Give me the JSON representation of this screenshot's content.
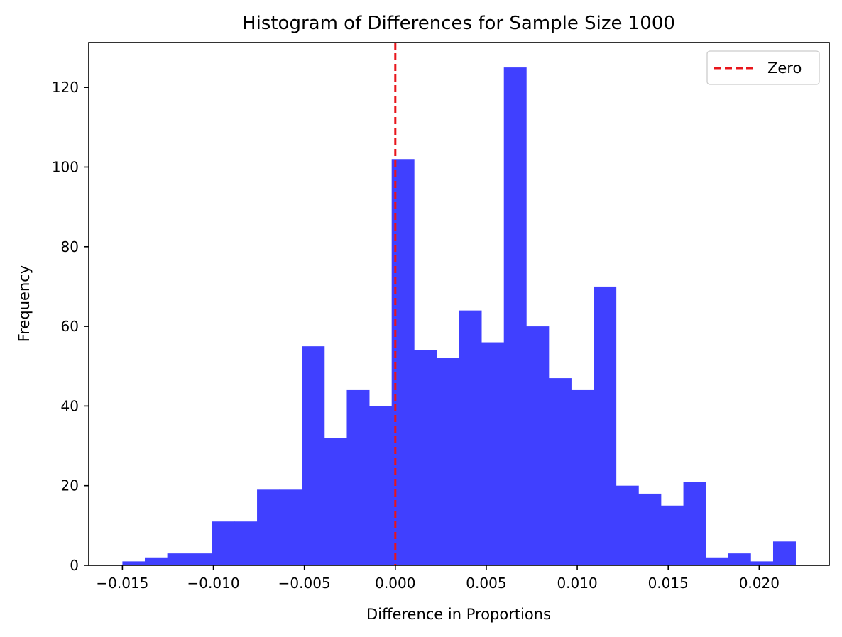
{
  "chart_data": {
    "type": "bar",
    "title": "Histogram of Differences for Sample Size 1000",
    "xlabel": "Difference in Proportions",
    "ylabel": "Frequency",
    "xlim": [
      -0.01685,
      0.02385
    ],
    "ylim": [
      0,
      131.25
    ],
    "x_ticks": [
      {
        "value": -0.015,
        "label": "−0.015"
      },
      {
        "value": -0.01,
        "label": "−0.010"
      },
      {
        "value": -0.005,
        "label": "−0.005"
      },
      {
        "value": 0.0,
        "label": "0.000"
      },
      {
        "value": 0.005,
        "label": "0.005"
      },
      {
        "value": 0.01,
        "label": "0.010"
      },
      {
        "value": 0.015,
        "label": "0.015"
      },
      {
        "value": 0.02,
        "label": "0.020"
      }
    ],
    "y_ticks": [
      {
        "value": 0,
        "label": "0"
      },
      {
        "value": 20,
        "label": "20"
      },
      {
        "value": 40,
        "label": "40"
      },
      {
        "value": 60,
        "label": "60"
      },
      {
        "value": 80,
        "label": "80"
      },
      {
        "value": 100,
        "label": "100"
      },
      {
        "value": 120,
        "label": "120"
      }
    ],
    "bin_start": -0.015,
    "bin_end": 0.022,
    "counts": [
      1,
      2,
      3,
      3,
      11,
      11,
      19,
      19,
      55,
      32,
      44,
      40,
      102,
      54,
      52,
      64,
      56,
      125,
      60,
      47,
      44,
      70,
      20,
      18,
      15,
      21,
      2,
      3,
      1,
      6
    ],
    "bar_color": "#4040ff",
    "reference_line": {
      "x": 0.0,
      "color": "#e8151b",
      "style": "dashed",
      "name": "Zero"
    },
    "legend": {
      "position": "top-right",
      "entries": [
        "Zero"
      ]
    },
    "grid": false
  }
}
